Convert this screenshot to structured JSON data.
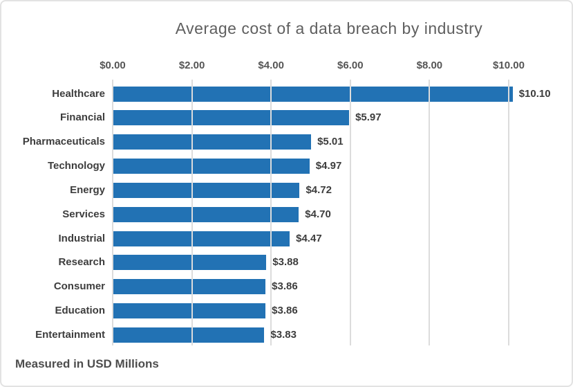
{
  "chart_data": {
    "type": "bar",
    "orientation": "horizontal",
    "title": "Average cost of a data breach by industry",
    "footnote": "Measured in USD Millions",
    "unit": "USD Millions",
    "categories": [
      "Healthcare",
      "Financial",
      "Pharmaceuticals",
      "Technology",
      "Energy",
      "Services",
      "Industrial",
      "Research",
      "Consumer",
      "Education",
      "Entertainment"
    ],
    "values": [
      10.1,
      5.97,
      5.01,
      4.97,
      4.72,
      4.7,
      4.47,
      3.88,
      3.86,
      3.86,
      3.83
    ],
    "value_labels": [
      "$10.10",
      "$5.97",
      "$5.01",
      "$4.97",
      "$4.72",
      "$4.70",
      "$4.47",
      "$3.88",
      "$3.86",
      "$3.86",
      "$3.83"
    ],
    "x_ticks": [
      "$0.00",
      "$2.00",
      "$4.00",
      "$6.00",
      "$8.00",
      "$10.00"
    ],
    "x_tick_values": [
      0,
      2,
      4,
      6,
      8,
      10
    ],
    "xlim": [
      0,
      10.5
    ],
    "grid": "vertical",
    "legend": "none",
    "colors": {
      "bar": "#2272b4",
      "gridline": "#dcdcdc",
      "title_text": "#5f5f5f",
      "label_text": "#3d3d3d",
      "tick_text": "#555555",
      "footnote_text": "#4d4d4d"
    }
  }
}
